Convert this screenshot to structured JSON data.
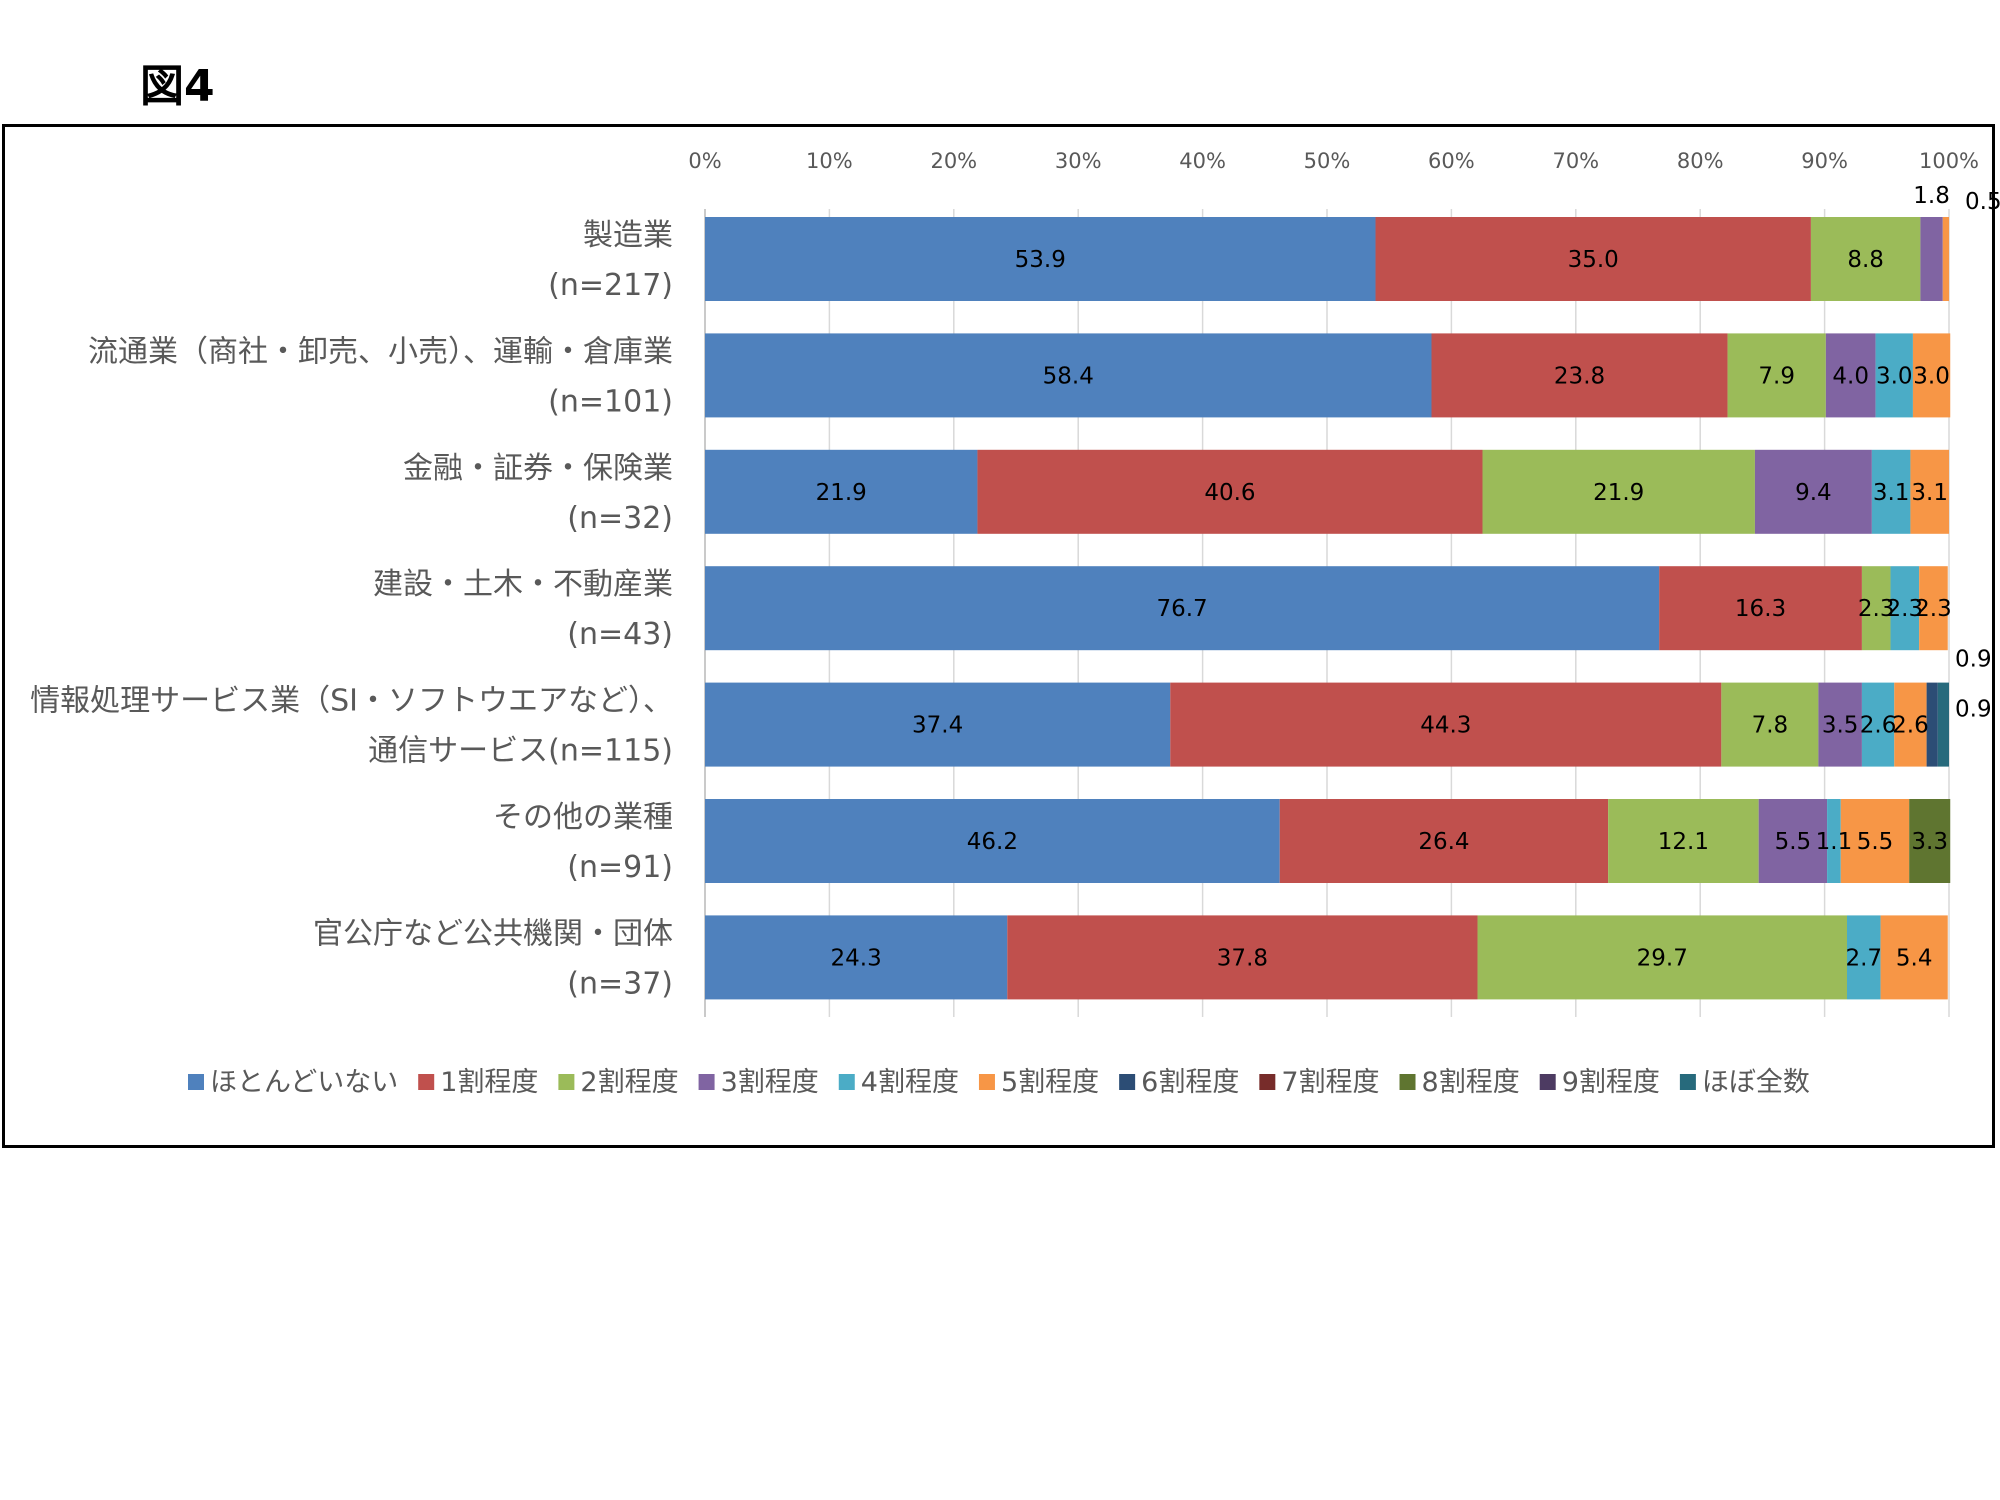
{
  "figure_title": "図4",
  "chart_data": {
    "type": "bar",
    "orientation": "horizontal",
    "stacked": "percent",
    "xlim": [
      0,
      100
    ],
    "x_ticks": [
      "0%",
      "10%",
      "20%",
      "30%",
      "40%",
      "50%",
      "60%",
      "70%",
      "80%",
      "90%",
      "100%"
    ],
    "grid": true,
    "legend_position": "bottom",
    "categories": [
      [
        "製造業",
        "(n=217)"
      ],
      [
        "流通業（商社・卸売、小売）、運輸・倉庫業",
        "(n=101)"
      ],
      [
        "金融・証券・保険業",
        "(n=32)"
      ],
      [
        "建設・土木・不動産業",
        "(n=43)"
      ],
      [
        "情報処理サービス業（SI・ソフトウエアなど）、",
        "通信サービス(n=115)"
      ],
      [
        "その他の業種",
        "(n=91)"
      ],
      [
        "官公庁など公共機関・団体",
        "(n=37)"
      ]
    ],
    "series": [
      {
        "name": "ほとんどいない",
        "color": "#4f81bd",
        "label_color": "#000000",
        "values": [
          53.9,
          58.4,
          21.9,
          76.7,
          37.4,
          46.2,
          24.3
        ]
      },
      {
        "name": "1割程度",
        "color": "#c0504d",
        "label_color": "#000000",
        "values": [
          35.0,
          23.8,
          40.6,
          16.3,
          44.3,
          26.4,
          37.8
        ]
      },
      {
        "name": "2割程度",
        "color": "#9bbb59",
        "label_color": "#000000",
        "values": [
          8.8,
          7.9,
          21.9,
          2.3,
          7.8,
          12.1,
          29.7
        ]
      },
      {
        "name": "3割程度",
        "color": "#8064a2",
        "label_color": "#000000",
        "values": [
          1.8,
          4.0,
          9.4,
          0,
          3.5,
          5.5,
          0
        ]
      },
      {
        "name": "4割程度",
        "color": "#4bacc6",
        "label_color": "#000000",
        "values": [
          0,
          3.0,
          3.1,
          2.3,
          2.6,
          1.1,
          2.7
        ]
      },
      {
        "name": "5割程度",
        "color": "#f79646",
        "label_color": "#000000",
        "values": [
          0.5,
          3.0,
          3.1,
          2.3,
          2.6,
          5.5,
          5.4
        ]
      },
      {
        "name": "6割程度",
        "color": "#2c4d75",
        "label_color": "#ffffff",
        "values": [
          0,
          0,
          0,
          0,
          0.9,
          0,
          0
        ]
      },
      {
        "name": "7割程度",
        "color": "#772c2a",
        "label_color": "#ffffff",
        "values": [
          0,
          0,
          0,
          0,
          0,
          0,
          0
        ]
      },
      {
        "name": "8割程度",
        "color": "#5f7530",
        "label_color": "#000000",
        "values": [
          0,
          0,
          0,
          0,
          0,
          3.3,
          0
        ]
      },
      {
        "name": "9割程度",
        "color": "#4d3b62",
        "label_color": "#ffffff",
        "values": [
          0,
          0,
          0,
          0,
          0,
          0,
          0
        ]
      },
      {
        "name": "ほぼ全数",
        "color": "#276a7c",
        "label_color": "#ffffff",
        "values": [
          0,
          0,
          0,
          0,
          0.9,
          0,
          0
        ]
      }
    ],
    "outside_labels": [
      {
        "category_index": 0,
        "series_index": 3,
        "text": "1.8"
      },
      {
        "category_index": 0,
        "series_index": 5,
        "text": "0.5"
      },
      {
        "category_index": 4,
        "series_index": 6,
        "text": "0.9"
      },
      {
        "category_index": 4,
        "series_index": 10,
        "text": "0.9"
      }
    ]
  }
}
